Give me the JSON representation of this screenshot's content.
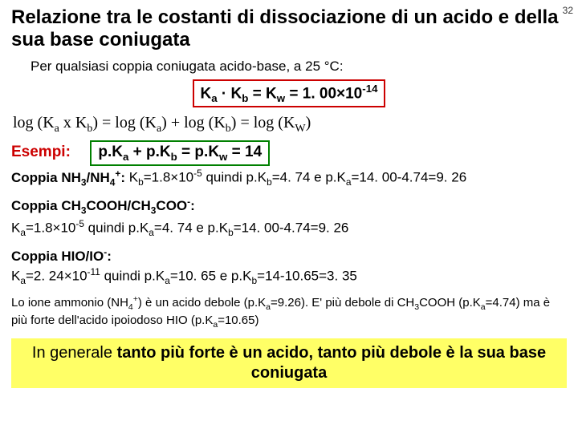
{
  "pageNumber": "32",
  "title": "Relazione tra le costanti di dissociazione di un acido e della sua base coniugata",
  "subtitle": "Per qualsiasi coppia coniugata acido-base, a 25 °C:",
  "eq1_html": "K<sub>a</sub> · K<sub>b</sub> = K<sub>w</sub> = 1. 00×10<sup>-14</sup>",
  "logline_html": "log (K<sub>a</sub> x K<sub>b</sub>) = log (K<sub>a</sub>) + log (K<sub>b</sub>) = log (K<sub>W</sub>)",
  "esempi_label": "Esempi:",
  "eq2_html": "p.K<sub>a</sub> + p.K<sub>b</sub> = p.K<sub>w</sub> = 14",
  "couple1_html": "<span class=\"bold\">Coppia NH<sub>3</sub>/NH<sub>4</sub><sup>+</sup>:</span> K<sub>b</sub>=1.8×10<sup>-5</sup> quindi p.K<sub>b</sub>=4. 74 e p.K<sub>a</sub>=14. 00-4.74=9. 26",
  "couple2a_html": "<span class=\"bold\">Coppia CH<sub>3</sub>COOH/CH<sub>3</sub>COO<sup>-</sup>:</span>",
  "couple2b_html": "K<sub>a</sub>=1.8×10<sup>-5</sup> quindi p.K<sub>a</sub>=4. 74 e p.K<sub>b</sub>=14. 00-4.74=9. 26",
  "couple3a_html": "<span class=\"bold\">Coppia HIO/IO<sup>-</sup>:</span>",
  "couple3b_html": "K<sub>a</sub>=2. 24×10<sup>-11</sup> quindi p.K<sub>a</sub>=10. 65 e p.K<sub>b</sub>=14-10.65=3. 35",
  "note_html": "Lo ione ammonio (NH<sub>4</sub><sup>+</sup>) è un acido debole (p.K<sub>a</sub>=9.26). E' più debole di CH<sub>3</sub>COOH (p.K<sub>a</sub>=4.74) ma è più forte dell'acido ipoiodoso HIO (p.K<sub>a</sub>=10.65)",
  "conclusion_html": "In generale <span class=\"bold\">tanto più forte è un acido, tanto più debole è la sua base coniugata</span>",
  "colors": {
    "accent_red": "#cc0000",
    "accent_green": "#008000",
    "highlight_yellow": "#ffff66",
    "background": "#ffffff",
    "text": "#000000"
  }
}
